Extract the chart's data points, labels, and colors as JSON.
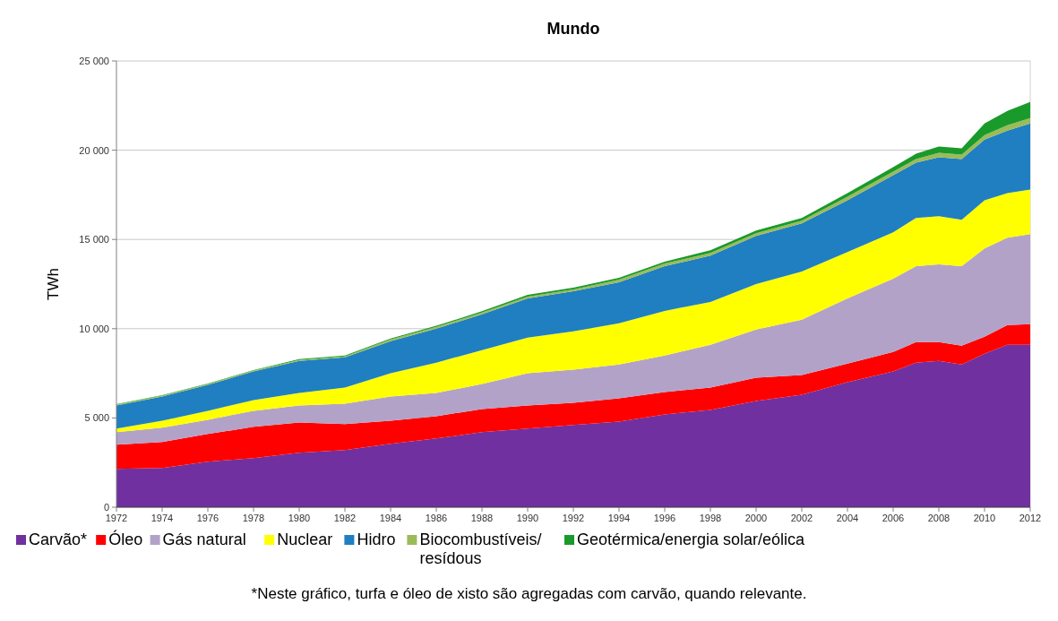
{
  "chart_data": {
    "type": "area",
    "stacked": true,
    "title": "Mundo",
    "ylabel": "TWh",
    "x": [
      1972,
      1974,
      1976,
      1978,
      1980,
      1982,
      1984,
      1986,
      1988,
      1990,
      1992,
      1994,
      1996,
      1998,
      2000,
      2002,
      2004,
      2006,
      2007,
      2008,
      2009,
      2010,
      2011,
      2012
    ],
    "xlim": [
      1972,
      2012
    ],
    "xticks": [
      1972,
      1974,
      1976,
      1978,
      1980,
      1982,
      1984,
      1986,
      1988,
      1990,
      1992,
      1994,
      1996,
      1998,
      2000,
      2002,
      2004,
      2006,
      2008,
      2010,
      2012
    ],
    "ylim": [
      0,
      25000
    ],
    "yticks": [
      0,
      {
        "value": 5000,
        "label": "5 000"
      },
      {
        "value": 10000,
        "label": "10 000"
      },
      {
        "value": 15000,
        "label": "15 000"
      },
      {
        "value": 20000,
        "label": "20 000"
      },
      {
        "value": 25000,
        "label": "25 000"
      }
    ],
    "grid": "y",
    "legend": "bottom",
    "series": [
      {
        "name": "Carvão*",
        "color": "#7030a0",
        "values": [
          2150,
          2200,
          2550,
          2750,
          3050,
          3200,
          3550,
          3850,
          4200,
          4400,
          4600,
          4800,
          5200,
          5450,
          5950,
          6300,
          7000,
          7600,
          8100,
          8200,
          8000,
          8600,
          9100,
          9100
        ]
      },
      {
        "name": "Óleo",
        "color": "#ff0000",
        "values": [
          1350,
          1450,
          1550,
          1750,
          1700,
          1450,
          1300,
          1250,
          1300,
          1300,
          1250,
          1300,
          1250,
          1250,
          1300,
          1100,
          1050,
          1100,
          1150,
          1050,
          1050,
          950,
          1100,
          1150
        ]
      },
      {
        "name": "Gás natural",
        "color": "#b3a2c7",
        "values": [
          700,
          800,
          800,
          900,
          950,
          1150,
          1350,
          1300,
          1400,
          1800,
          1850,
          1900,
          2050,
          2400,
          2700,
          3100,
          3650,
          4100,
          4250,
          4350,
          4450,
          4950,
          4900,
          5050
        ]
      },
      {
        "name": "Nuclear",
        "color": "#ffff00",
        "values": [
          200,
          400,
          500,
          600,
          700,
          900,
          1300,
          1700,
          1900,
          2000,
          2150,
          2300,
          2500,
          2400,
          2550,
          2700,
          2600,
          2600,
          2700,
          2700,
          2600,
          2700,
          2500,
          2500
        ]
      },
      {
        "name": "Hidro",
        "color": "#1f7fc0",
        "values": [
          1300,
          1350,
          1450,
          1600,
          1800,
          1700,
          1800,
          1900,
          2000,
          2200,
          2250,
          2300,
          2500,
          2600,
          2700,
          2700,
          2900,
          3200,
          3100,
          3300,
          3400,
          3400,
          3500,
          3700
        ]
      },
      {
        "name": "Biocombustíveis/ resídous",
        "color": "#9bbb59",
        "values": [
          50,
          50,
          50,
          50,
          50,
          50,
          100,
          100,
          100,
          100,
          100,
          150,
          150,
          150,
          150,
          150,
          200,
          200,
          200,
          250,
          250,
          250,
          300,
          300
        ]
      },
      {
        "name": "Geotérmica/energia solar/eólica",
        "color": "#1a9a2a",
        "values": [
          20,
          20,
          30,
          30,
          40,
          50,
          50,
          60,
          80,
          100,
          100,
          100,
          100,
          150,
          150,
          150,
          200,
          250,
          300,
          350,
          350,
          650,
          800,
          900
        ]
      }
    ],
    "annotations": [
      "*Neste gráfico, turfa e óleo de xisto são agregadas com carvão, quando relevante."
    ]
  }
}
